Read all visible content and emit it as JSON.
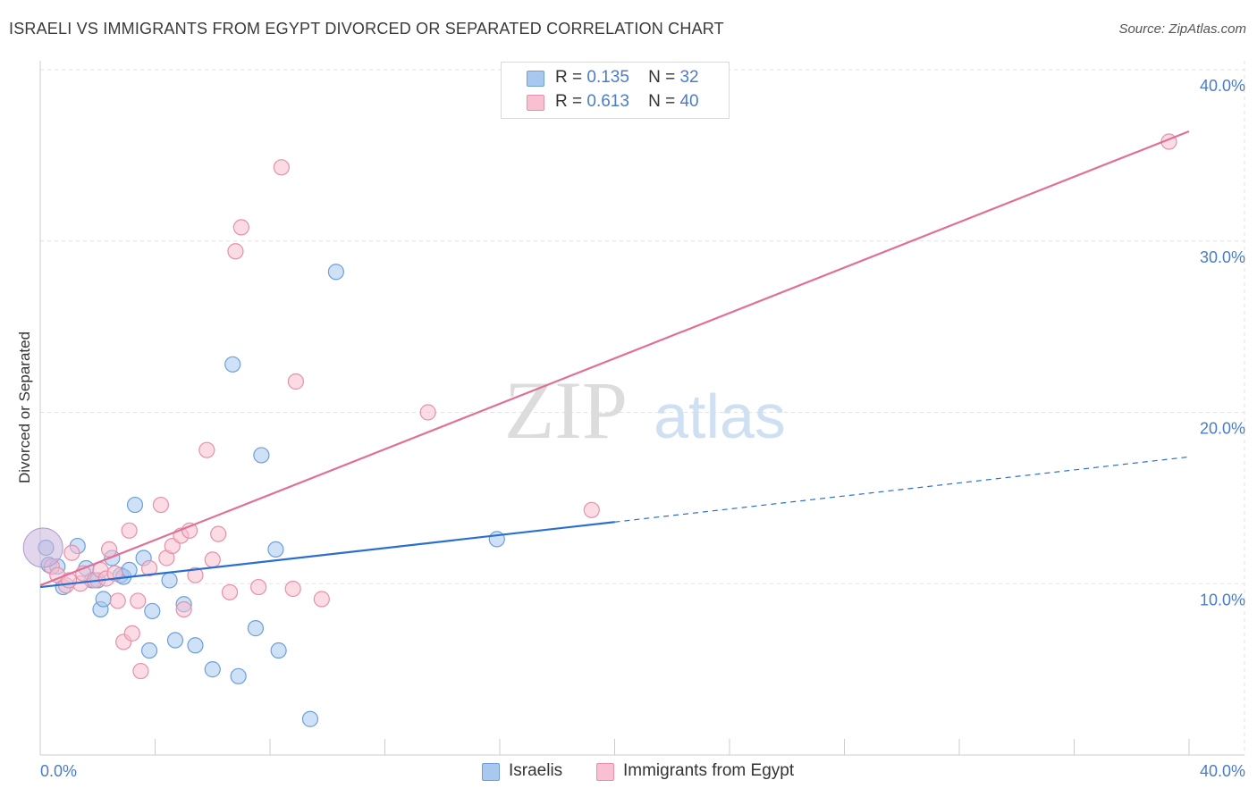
{
  "header": {
    "title": "ISRAELI VS IMMIGRANTS FROM EGYPT DIVORCED OR SEPARATED CORRELATION CHART",
    "source": "Source: ZipAtlas.com"
  },
  "watermark": {
    "zip": "ZIP",
    "atlas": "atlas"
  },
  "legend": {
    "rows": [
      {
        "r_label": "R =",
        "r_value": "0.135",
        "n_label": "N =",
        "n_value": "32",
        "color": "#a8c8f0",
        "border": "#6f9fd8"
      },
      {
        "r_label": "R =",
        "r_value": "0.613",
        "n_label": "N =",
        "n_value": "40",
        "color": "#f8c0d0",
        "border": "#e690aa"
      }
    ]
  },
  "chart_data": {
    "type": "scatter",
    "title": "ISRAELI VS IMMIGRANTS FROM EGYPT DIVORCED OR SEPARATED CORRELATION CHART",
    "xlabel": "",
    "ylabel": "Divorced or Separated",
    "xlim": [
      0,
      40
    ],
    "ylim": [
      0,
      40
    ],
    "x_tick_labels": [
      "0.0%",
      "40.0%"
    ],
    "y_ticks": [
      10,
      20,
      30,
      40
    ],
    "y_tick_labels": [
      "10.0%",
      "20.0%",
      "30.0%",
      "40.0%"
    ],
    "grid": true,
    "legend_position": "top-center",
    "series": [
      {
        "name": "Israelis",
        "color": "#a8c8f0",
        "stroke": "#6f9fd8",
        "line_color": "#2a6fd0",
        "trend": {
          "x0": 0,
          "y0": 9.8,
          "x1": 20,
          "y1": 13.6,
          "dashed_to_x": 40,
          "dashed_to_y": 17.4
        },
        "points": [
          [
            0.2,
            12.1
          ],
          [
            0.3,
            11.1
          ],
          [
            0.6,
            11.0
          ],
          [
            0.8,
            9.8
          ],
          [
            1.3,
            12.2
          ],
          [
            1.6,
            10.9
          ],
          [
            1.8,
            10.2
          ],
          [
            2.0,
            10.2
          ],
          [
            2.1,
            8.5
          ],
          [
            2.2,
            9.1
          ],
          [
            2.5,
            11.5
          ],
          [
            2.8,
            10.5
          ],
          [
            2.9,
            10.4
          ],
          [
            3.1,
            10.8
          ],
          [
            3.3,
            14.6
          ],
          [
            3.6,
            11.5
          ],
          [
            3.8,
            6.1
          ],
          [
            3.9,
            8.4
          ],
          [
            4.5,
            10.2
          ],
          [
            4.7,
            6.7
          ],
          [
            5.0,
            8.8
          ],
          [
            5.4,
            6.4
          ],
          [
            6.0,
            5.0
          ],
          [
            6.7,
            22.8
          ],
          [
            6.9,
            4.6
          ],
          [
            7.5,
            7.4
          ],
          [
            7.7,
            17.5
          ],
          [
            8.2,
            12.0
          ],
          [
            8.3,
            6.1
          ],
          [
            9.4,
            2.1
          ],
          [
            10.3,
            28.2
          ],
          [
            15.9,
            12.6
          ]
        ]
      },
      {
        "name": "Immigrants from Egypt",
        "color": "#f8c0d0",
        "stroke": "#e690aa",
        "line_color": "#e07098",
        "trend": {
          "x0": 0,
          "y0": 9.9,
          "x1": 40,
          "y1": 36.4
        },
        "points": [
          [
            0.4,
            11.0
          ],
          [
            0.6,
            10.5
          ],
          [
            0.9,
            9.9
          ],
          [
            1.1,
            11.8
          ],
          [
            1.4,
            10.0
          ],
          [
            1.5,
            10.6
          ],
          [
            1.9,
            10.2
          ],
          [
            2.1,
            10.8
          ],
          [
            2.3,
            10.3
          ],
          [
            2.4,
            12.0
          ],
          [
            2.6,
            10.6
          ],
          [
            2.7,
            9.0
          ],
          [
            2.9,
            6.6
          ],
          [
            3.1,
            13.1
          ],
          [
            3.2,
            7.1
          ],
          [
            3.4,
            9.0
          ],
          [
            3.5,
            4.9
          ],
          [
            3.8,
            10.9
          ],
          [
            4.2,
            14.6
          ],
          [
            4.4,
            11.5
          ],
          [
            4.6,
            12.2
          ],
          [
            4.9,
            12.8
          ],
          [
            5.0,
            8.5
          ],
          [
            5.2,
            13.1
          ],
          [
            5.4,
            10.5
          ],
          [
            5.8,
            17.8
          ],
          [
            6.0,
            11.4
          ],
          [
            6.2,
            12.9
          ],
          [
            6.6,
            9.5
          ],
          [
            6.8,
            29.4
          ],
          [
            7.0,
            30.8
          ],
          [
            7.6,
            9.8
          ],
          [
            8.4,
            34.3
          ],
          [
            8.8,
            9.7
          ],
          [
            8.9,
            21.8
          ],
          [
            9.8,
            9.1
          ],
          [
            13.5,
            20.0
          ],
          [
            19.2,
            14.3
          ],
          [
            39.3,
            35.8
          ],
          [
            1.0,
            10.2
          ]
        ]
      }
    ]
  },
  "bottom_legend": {
    "items": [
      "Israelis",
      "Immigrants from Egypt"
    ]
  }
}
